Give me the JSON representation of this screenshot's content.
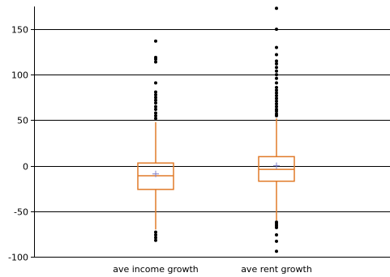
{
  "chart_data": {
    "type": "box",
    "categories": [
      "ave income growth",
      "ave rent growth"
    ],
    "ylim": [
      -100,
      175
    ],
    "yticks": [
      150,
      100,
      50,
      0,
      -50,
      -100
    ],
    "ytick_labels": [
      "150",
      "100",
      "50",
      "0",
      "-50",
      "-100"
    ],
    "grid": true,
    "title": "",
    "xlabel": "",
    "ylabel": "",
    "colors": {
      "box": "#e07a28",
      "mean": "#8080c8",
      "grid": "#000000",
      "flier": "#000000"
    },
    "boxes": [
      {
        "name": "ave income growth",
        "q1": -26,
        "median": -11,
        "q3": 3,
        "mean": -9,
        "whisker_low": -70,
        "whisker_high": 48,
        "fliers": [
          137,
          119,
          117,
          114,
          91,
          81,
          78,
          75,
          72,
          69,
          65,
          62,
          58,
          55,
          52,
          -73,
          -76,
          -79,
          -82
        ]
      },
      {
        "name": "ave rent growth",
        "q1": -17,
        "median": -4,
        "q3": 10,
        "mean": 0,
        "whisker_low": -60,
        "whisker_high": 52,
        "fliers": [
          173,
          150,
          130,
          122,
          115,
          112,
          108,
          104,
          100,
          96,
          91,
          86,
          83,
          80,
          77,
          74,
          71,
          68,
          65,
          62,
          60,
          57,
          55,
          -62,
          -64,
          -66,
          -68,
          -76,
          -83,
          -94
        ]
      }
    ]
  }
}
